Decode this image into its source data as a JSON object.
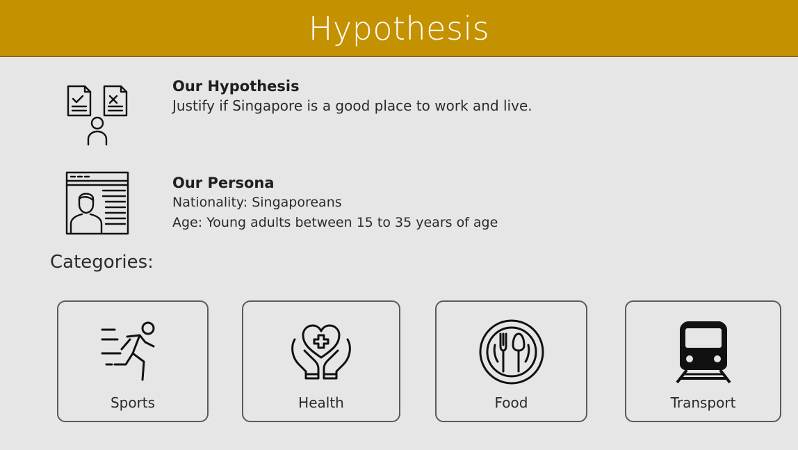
{
  "header": {
    "title": "Hypothesis"
  },
  "hypothesis": {
    "title": "Our Hypothesis",
    "text": "Justify if Singapore is a good place to work and live."
  },
  "persona": {
    "title": "Our Persona",
    "nationality": "Nationality: Singaporeans",
    "age": "Age: Young adults between 15 to 35 years of age"
  },
  "categories": {
    "label": "Categories:",
    "items": [
      {
        "label": "Sports",
        "icon": "runner-icon"
      },
      {
        "label": "Health",
        "icon": "hands-heart-icon"
      },
      {
        "label": "Food",
        "icon": "plate-cutlery-icon"
      },
      {
        "label": "Transport",
        "icon": "train-icon"
      }
    ]
  },
  "colors": {
    "header_bg": "#c49100",
    "page_bg": "#e6e6e6",
    "border": "#5a5a5a"
  }
}
